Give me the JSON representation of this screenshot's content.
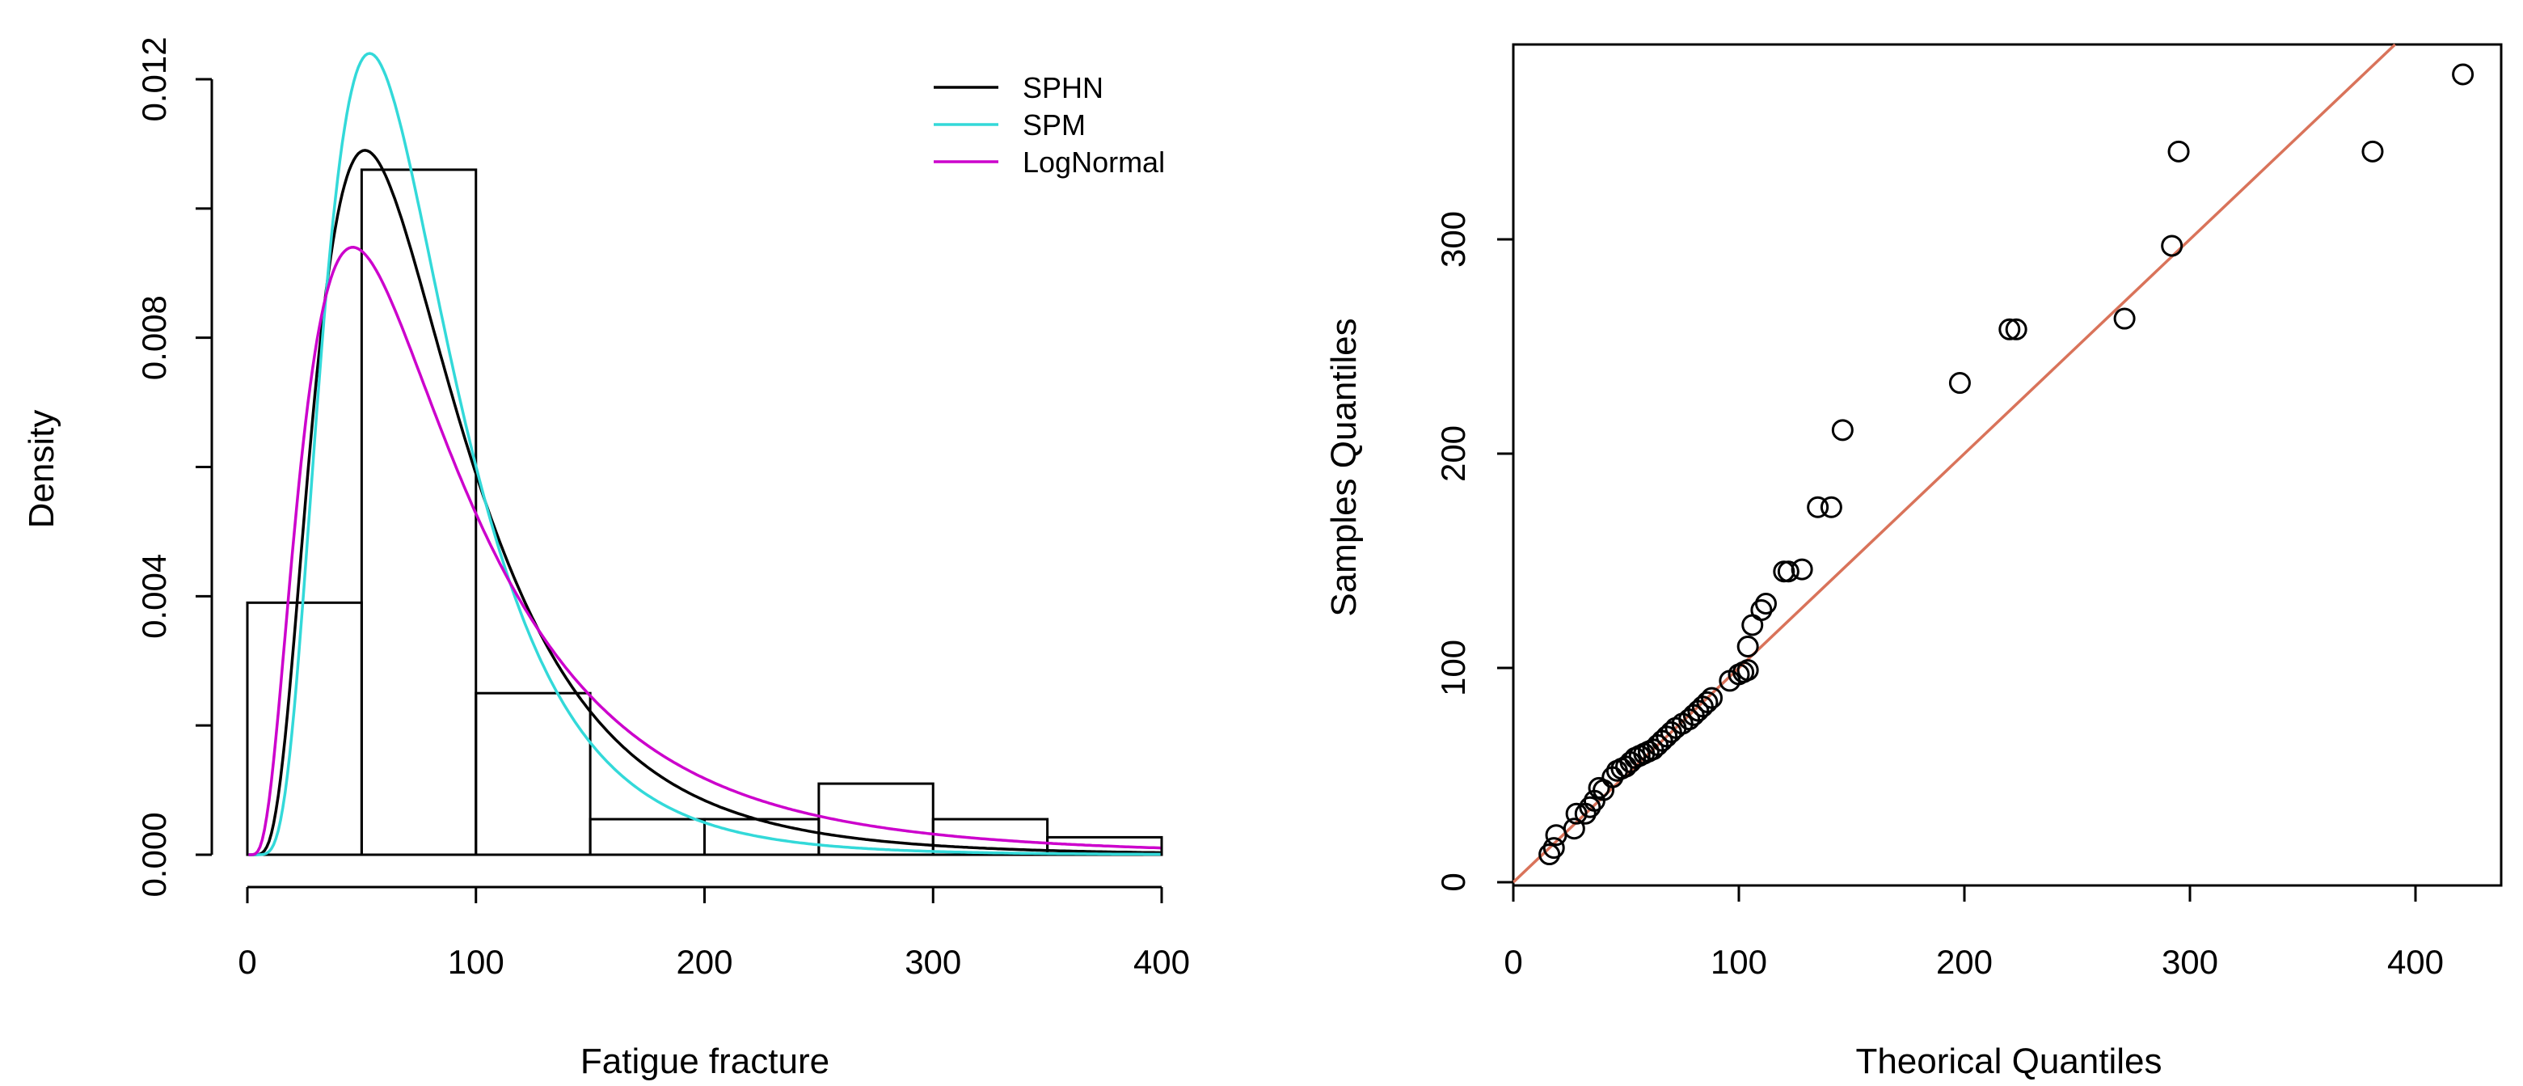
{
  "chart_data": [
    {
      "type": "histogram-with-density",
      "xlabel": "Fatigue fracture",
      "ylabel": "Density",
      "xlim": [
        0,
        400
      ],
      "ylim": [
        0,
        0.012
      ],
      "xticks": [
        "0",
        "100",
        "200",
        "300",
        "400"
      ],
      "yticks": [
        "0.000",
        "0.004",
        "0.008",
        "0.012"
      ],
      "bins": [
        {
          "from": 0,
          "to": 50,
          "density": 0.0039
        },
        {
          "from": 50,
          "to": 100,
          "density": 0.0106
        },
        {
          "from": 100,
          "to": 150,
          "density": 0.0025
        },
        {
          "from": 150,
          "to": 200,
          "density": 0.00055
        },
        {
          "from": 200,
          "to": 250,
          "density": 0.00055
        },
        {
          "from": 250,
          "to": 300,
          "density": 0.0011
        },
        {
          "from": 300,
          "to": 350,
          "density": 0.00055
        },
        {
          "from": 350,
          "to": 400,
          "density": 0.00027
        }
      ],
      "series": [
        {
          "name": "SPHN",
          "color": "#000000",
          "dist": "lognormal",
          "meanlog": 4.3,
          "sdlog": 0.6,
          "peak": 0.0109,
          "mode": 52
        },
        {
          "name": "SPM",
          "color": "#33d9d9",
          "dist": "lognormal",
          "meanlog": 4.25,
          "sdlog": 0.52,
          "peak": 0.0124,
          "mode": 60
        },
        {
          "name": "LogNormal",
          "color": "#cc00cc",
          "dist": "lognormal",
          "meanlog": 4.35,
          "sdlog": 0.72,
          "peak": 0.0094,
          "mode": 47
        }
      ],
      "legend": {
        "position": "top-right",
        "entries": [
          "SPHN",
          "SPM",
          "LogNormal"
        ]
      }
    },
    {
      "type": "scatter",
      "title": "",
      "xlabel": "Theorical Quantiles",
      "ylabel": "Samples Quantiles",
      "xlim": [
        0,
        430
      ],
      "ylim": [
        0,
        380
      ],
      "xticks": [
        "0",
        "100",
        "200",
        "300",
        "400"
      ],
      "yticks": [
        "0",
        "100",
        "200",
        "300"
      ],
      "reference_line": {
        "intercept": 0,
        "slope": 1.0,
        "color": "#d9735a"
      },
      "points": [
        [
          16,
          13
        ],
        [
          18,
          16
        ],
        [
          19,
          22
        ],
        [
          27,
          25
        ],
        [
          28,
          32
        ],
        [
          32,
          32
        ],
        [
          34,
          35
        ],
        [
          36,
          38
        ],
        [
          38,
          44
        ],
        [
          40,
          43
        ],
        [
          44,
          49
        ],
        [
          46,
          52
        ],
        [
          48,
          53
        ],
        [
          50,
          54
        ],
        [
          52,
          56
        ],
        [
          54,
          58
        ],
        [
          56,
          59
        ],
        [
          58,
          60
        ],
        [
          60,
          61
        ],
        [
          62,
          62
        ],
        [
          64,
          64
        ],
        [
          66,
          66
        ],
        [
          68,
          68
        ],
        [
          70,
          70
        ],
        [
          72,
          72
        ],
        [
          75,
          74
        ],
        [
          78,
          76
        ],
        [
          80,
          78
        ],
        [
          82,
          80
        ],
        [
          84,
          82
        ],
        [
          86,
          84
        ],
        [
          88,
          86
        ],
        [
          96,
          94
        ],
        [
          100,
          97
        ],
        [
          102,
          98
        ],
        [
          104,
          99
        ],
        [
          104,
          110
        ],
        [
          106,
          120
        ],
        [
          110,
          127
        ],
        [
          112,
          130
        ],
        [
          120,
          145
        ],
        [
          122,
          145
        ],
        [
          128,
          146
        ],
        [
          135,
          175
        ],
        [
          141,
          175
        ],
        [
          146,
          211
        ],
        [
          198,
          233
        ],
        [
          220,
          258
        ],
        [
          223,
          258
        ],
        [
          271,
          263
        ],
        [
          292,
          297
        ],
        [
          295,
          341
        ],
        [
          381,
          341
        ],
        [
          421,
          377
        ]
      ]
    }
  ]
}
